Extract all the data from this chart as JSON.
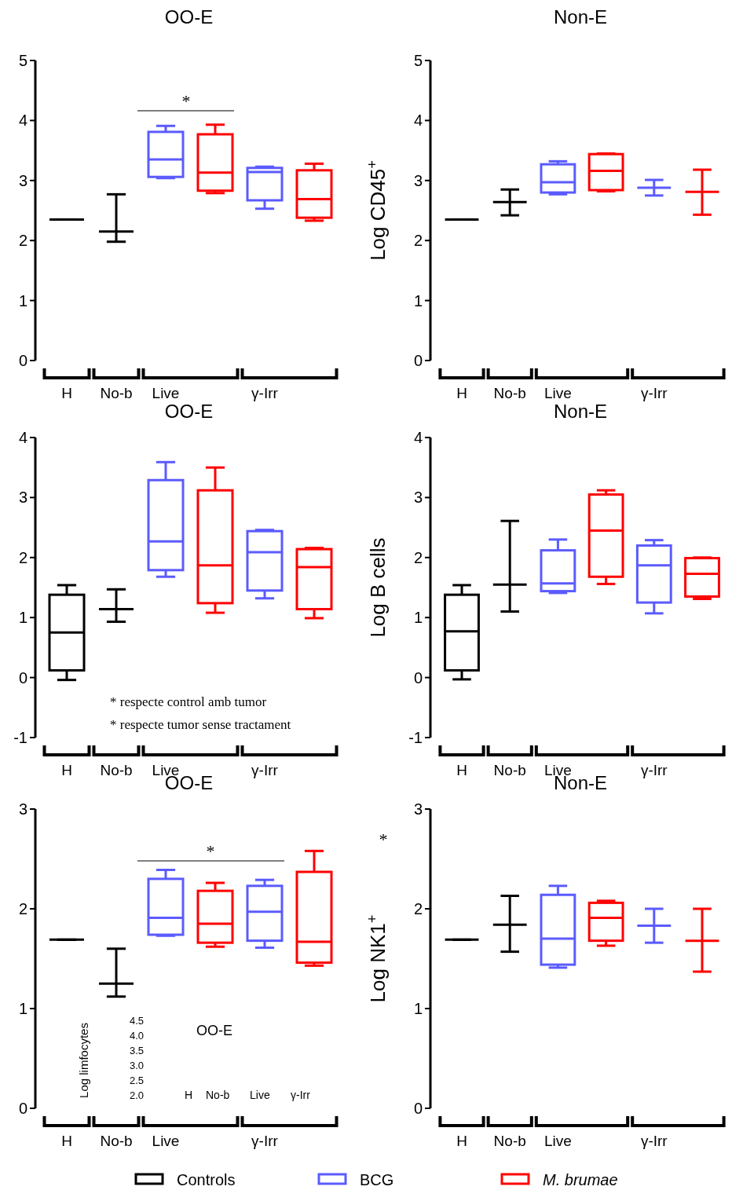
{
  "chart_data": [
    {
      "type": "box",
      "title": "OO-E",
      "categories": [
        "H",
        "No-b",
        "Live",
        null,
        "γ-Irr",
        null
      ],
      "ylim": [
        0,
        5
      ],
      "yticks": [
        0,
        1,
        2,
        3,
        4,
        5
      ],
      "series": [
        {
          "color": "#000000",
          "boxes": [
            {
              "low": 2.35,
              "q1": 2.35,
              "median": 2.35,
              "q3": 2.35,
              "high": 2.35
            },
            {
              "low": 1.98,
              "q1": 2.15,
              "median": 2.15,
              "q3": 2.15,
              "high": 2.77
            },
            null,
            null,
            null,
            null
          ]
        },
        {
          "color": "#5b5bff",
          "boxes": [
            null,
            null,
            {
              "low": 3.04,
              "q1": 3.06,
              "median": 3.35,
              "q3": 3.81,
              "high": 3.91
            },
            null,
            {
              "low": 2.53,
              "q1": 2.67,
              "median": 3.14,
              "q3": 3.21,
              "high": 3.23
            },
            null
          ]
        },
        {
          "color": "#ff0000",
          "boxes": [
            null,
            null,
            null,
            {
              "low": 2.79,
              "q1": 2.83,
              "median": 3.13,
              "q3": 3.77,
              "high": 3.93
            },
            null,
            {
              "low": 2.33,
              "q1": 2.38,
              "median": 2.69,
              "q3": 3.17,
              "high": 3.28
            }
          ]
        }
      ],
      "annotations": [
        "*"
      ]
    },
    {
      "type": "box",
      "title": "Non-E",
      "ylabel": "Log CD45$^{+}$",
      "categories": [
        "H",
        "No-b",
        "Live",
        null,
        "γ-Irr",
        null
      ],
      "ylim": [
        0,
        5
      ],
      "yticks": [
        0,
        1,
        2,
        3,
        4,
        5
      ],
      "series": [
        {
          "color": "#000000",
          "boxes": [
            {
              "low": 2.35,
              "q1": 2.35,
              "median": 2.35,
              "q3": 2.35,
              "high": 2.35
            },
            {
              "low": 2.42,
              "q1": 2.64,
              "median": 2.64,
              "q3": 2.64,
              "high": 2.85
            },
            null,
            null,
            null,
            null
          ]
        },
        {
          "color": "#5b5bff",
          "boxes": [
            null,
            null,
            {
              "low": 2.77,
              "q1": 2.8,
              "median": 2.97,
              "q3": 3.27,
              "high": 3.32
            },
            null,
            {
              "low": 2.75,
              "q1": 2.88,
              "median": 2.88,
              "q3": 2.88,
              "high": 3.01
            },
            null
          ]
        },
        {
          "color": "#ff0000",
          "boxes": [
            null,
            null,
            null,
            {
              "low": 2.82,
              "q1": 2.84,
              "median": 3.16,
              "q3": 3.44,
              "high": 3.45
            },
            null,
            {
              "low": 2.43,
              "q1": 2.81,
              "median": 2.81,
              "q3": 2.81,
              "high": 3.18
            }
          ]
        }
      ]
    },
    {
      "type": "box",
      "title": "OO-E",
      "categories": [
        "H",
        "No-b",
        "Live",
        null,
        "γ-Irr",
        null
      ],
      "ylim": [
        -1,
        4
      ],
      "yticks": [
        -1,
        0,
        1,
        2,
        3,
        4
      ],
      "series": [
        {
          "color": "#000000",
          "boxes": [
            {
              "low": -0.04,
              "q1": 0.12,
              "median": 0.75,
              "q3": 1.38,
              "high": 1.54
            },
            {
              "low": 0.93,
              "q1": 1.14,
              "median": 1.14,
              "q3": 1.14,
              "high": 1.47
            },
            null,
            null,
            null,
            null
          ]
        },
        {
          "color": "#5b5bff",
          "boxes": [
            null,
            null,
            {
              "low": 1.68,
              "q1": 1.79,
              "median": 2.27,
              "q3": 3.29,
              "high": 3.59
            },
            null,
            {
              "low": 1.32,
              "q1": 1.45,
              "median": 2.09,
              "q3": 2.44,
              "high": 2.46
            },
            null
          ]
        },
        {
          "color": "#ff0000",
          "boxes": [
            null,
            null,
            null,
            {
              "low": 1.08,
              "q1": 1.24,
              "median": 1.87,
              "q3": 3.12,
              "high": 3.5
            },
            null,
            {
              "low": 0.99,
              "q1": 1.14,
              "median": 1.84,
              "q3": 2.14,
              "high": 2.16
            }
          ]
        }
      ],
      "annotations": [
        "* respecte control amb tumor",
        "* respecte tumor sense tractament"
      ]
    },
    {
      "type": "box",
      "title": "Non-E",
      "ylabel": "Log B cells",
      "categories": [
        "H",
        "No-b",
        "Live",
        null,
        "γ-Irr",
        null
      ],
      "ylim": [
        -1,
        4
      ],
      "yticks": [
        -1,
        0,
        1,
        2,
        3,
        4
      ],
      "series": [
        {
          "color": "#000000",
          "boxes": [
            {
              "low": -0.03,
              "q1": 0.12,
              "median": 0.77,
              "q3": 1.38,
              "high": 1.54
            },
            {
              "low": 1.1,
              "q1": 1.55,
              "median": 1.55,
              "q3": 1.55,
              "high": 2.61
            },
            null,
            null,
            null,
            null
          ]
        },
        {
          "color": "#5b5bff",
          "boxes": [
            null,
            null,
            {
              "low": 1.41,
              "q1": 1.44,
              "median": 1.57,
              "q3": 2.12,
              "high": 2.3
            },
            null,
            {
              "low": 1.07,
              "q1": 1.25,
              "median": 1.87,
              "q3": 2.2,
              "high": 2.29
            },
            null
          ]
        },
        {
          "color": "#ff0000",
          "boxes": [
            null,
            null,
            null,
            {
              "low": 1.56,
              "q1": 1.68,
              "median": 2.45,
              "q3": 3.05,
              "high": 3.12
            },
            null,
            {
              "low": 1.31,
              "q1": 1.35,
              "median": 1.73,
              "q3": 1.99,
              "high": 2.0
            }
          ]
        }
      ]
    },
    {
      "type": "box",
      "title": "OO-E",
      "categories": [
        "H",
        "No-b",
        "Live",
        null,
        "γ-Irr",
        null
      ],
      "ylim": [
        0,
        3
      ],
      "yticks": [
        0,
        1,
        2,
        3
      ],
      "series": [
        {
          "color": "#000000",
          "boxes": [
            {
              "low": 1.69,
              "q1": 1.69,
              "median": 1.69,
              "q3": 1.69,
              "high": 1.69
            },
            {
              "low": 1.12,
              "q1": 1.25,
              "median": 1.25,
              "q3": 1.25,
              "high": 1.6
            },
            null,
            null,
            null,
            null
          ]
        },
        {
          "color": "#5b5bff",
          "boxes": [
            null,
            null,
            {
              "low": 1.73,
              "q1": 1.74,
              "median": 1.91,
              "q3": 2.3,
              "high": 2.39
            },
            null,
            {
              "low": 1.61,
              "q1": 1.68,
              "median": 1.97,
              "q3": 2.23,
              "high": 2.29
            },
            null
          ]
        },
        {
          "color": "#ff0000",
          "boxes": [
            null,
            null,
            null,
            {
              "low": 1.62,
              "q1": 1.66,
              "median": 1.85,
              "q3": 2.18,
              "high": 2.26
            },
            null,
            {
              "low": 1.43,
              "q1": 1.46,
              "median": 1.67,
              "q3": 2.37,
              "high": 2.58
            }
          ]
        }
      ],
      "annotations": [
        "*",
        "OO-E",
        "Log limfocytes",
        "4.5",
        "4.0",
        "3.5",
        "3.0",
        "2.5",
        "2.0",
        "H",
        "No-b",
        "Live",
        "γ-Irr"
      ]
    },
    {
      "type": "box",
      "title": "Non-E",
      "ylabel": "Log NK1$^{+}$",
      "categories": [
        "H",
        "No-b",
        "Live",
        null,
        "γ-Irr",
        null
      ],
      "ylim": [
        0,
        3
      ],
      "yticks": [
        0,
        1,
        2,
        3
      ],
      "legend": "bottom",
      "series": [
        {
          "name": "Controls",
          "color": "#000000",
          "boxes": [
            {
              "low": 1.69,
              "q1": 1.69,
              "median": 1.69,
              "q3": 1.69,
              "high": 1.69
            },
            {
              "low": 1.57,
              "q1": 1.84,
              "median": 1.84,
              "q3": 1.84,
              "high": 2.13
            },
            null,
            null,
            null,
            null
          ]
        },
        {
          "name": "BCG",
          "color": "#5b5bff",
          "boxes": [
            null,
            null,
            {
              "low": 1.41,
              "q1": 1.44,
              "median": 1.7,
              "q3": 2.14,
              "high": 2.23
            },
            null,
            {
              "low": 1.66,
              "q1": 1.83,
              "median": 1.83,
              "q3": 1.83,
              "high": 2.0
            },
            null
          ]
        },
        {
          "name": "M. brumae",
          "color": "#ff0000",
          "boxes": [
            null,
            null,
            null,
            {
              "low": 1.63,
              "q1": 1.68,
              "median": 1.91,
              "q3": 2.06,
              "high": 2.08
            },
            null,
            {
              "low": 1.37,
              "q1": 1.68,
              "median": 1.68,
              "q3": 1.68,
              "high": 2.0
            }
          ]
        }
      ],
      "annotations": [
        "*"
      ]
    }
  ]
}
